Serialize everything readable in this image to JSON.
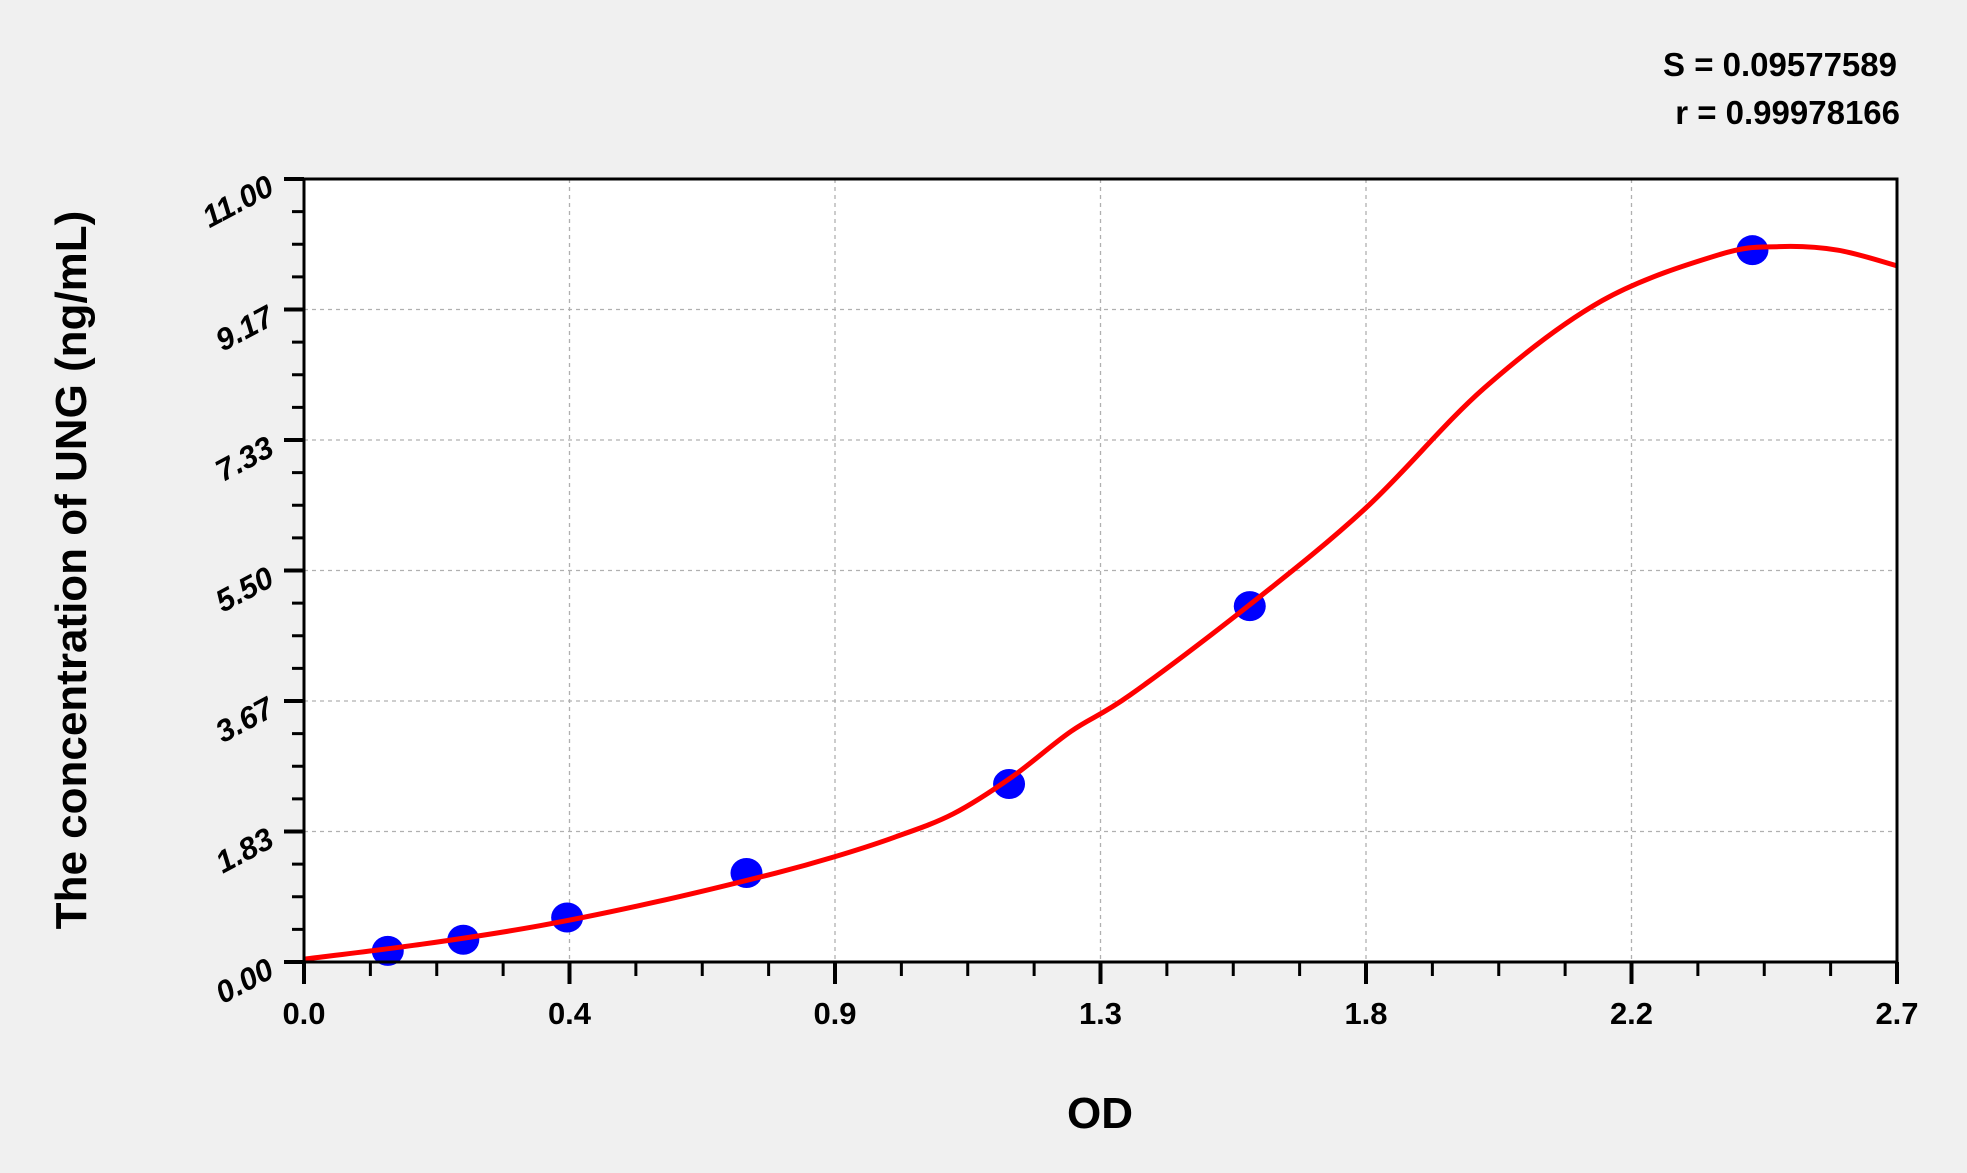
{
  "chart_data": {
    "type": "scatter",
    "title": "",
    "xlabel": "OD",
    "ylabel": "The concentration of UNG (ng/mL)",
    "xlim": [
      0,
      2.7
    ],
    "ylim": [
      0,
      11
    ],
    "x_tick_values": [
      0,
      0.45,
      0.9,
      1.35,
      1.8,
      2.25,
      2.7
    ],
    "x_tick_labels": [
      "0.0",
      "0.4",
      "0.9",
      "1.3",
      "1.8",
      "2.2",
      "2.7"
    ],
    "y_tick_values": [
      0,
      1.8333,
      3.6667,
      5.5,
      7.3333,
      9.1667,
      11
    ],
    "y_tick_labels": [
      "0.00",
      "1.83",
      "3.67",
      "5.50",
      "7.33",
      "9.17",
      "11.00"
    ],
    "grid": true,
    "points": {
      "color": "#0000ff",
      "x": [
        0.142,
        0.27,
        0.446,
        0.75,
        1.195,
        1.603,
        2.455
      ],
      "y": [
        0.156,
        0.313,
        0.625,
        1.25,
        2.5,
        5,
        10
      ]
    },
    "fit_curve": {
      "color": "#ff0000",
      "x": [
        0,
        0.2,
        0.4,
        0.6,
        0.8,
        0.9,
        1.0,
        1.1,
        1.2,
        1.3,
        1.4,
        1.6,
        1.8,
        2.0,
        2.2,
        2.4,
        2.5,
        2.6,
        2.7
      ],
      "y": [
        0.04,
        0.25,
        0.51,
        0.85,
        1.25,
        1.48,
        1.75,
        2.08,
        2.6,
        3.24,
        3.75,
        5.0,
        6.38,
        8.06,
        9.29,
        9.94,
        10.05,
        10.0,
        9.78
      ]
    },
    "annotations": {
      "s_text": "S = 0.09577589",
      "r_text": "r = 0.99978166"
    }
  }
}
